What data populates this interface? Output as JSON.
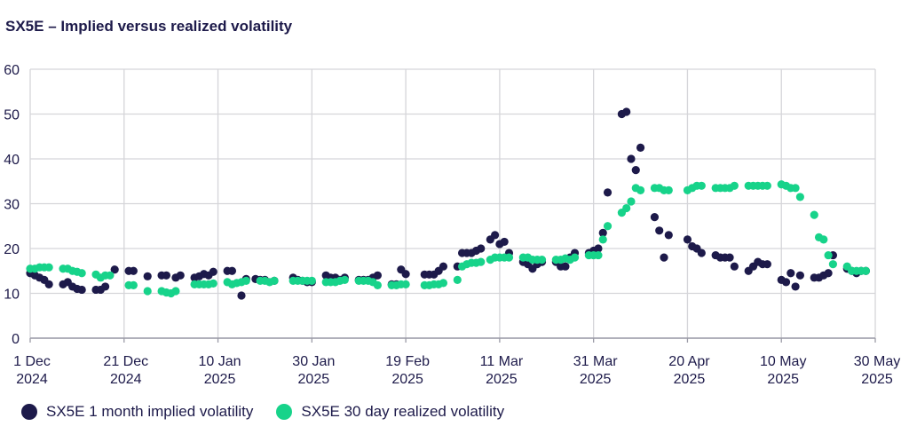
{
  "chart_data": {
    "type": "scatter",
    "title": "SX5E – Implied versus realized volatility",
    "xlabel": "",
    "ylabel": "",
    "ylim": [
      0,
      60
    ],
    "yticks": [
      0,
      10,
      20,
      30,
      40,
      50,
      60
    ],
    "grid": true,
    "legend_position": "bottom-left",
    "x_unit": "days since 1 Dec 2024",
    "xlim": [
      0,
      180
    ],
    "xticks": [
      {
        "x": 0,
        "label": [
          "1 Dec",
          "2024"
        ]
      },
      {
        "x": 20,
        "label": [
          "21 Dec",
          "2024"
        ]
      },
      {
        "x": 40,
        "label": [
          "10 Jan",
          "2025"
        ]
      },
      {
        "x": 60,
        "label": [
          "30 Jan",
          "2025"
        ]
      },
      {
        "x": 80,
        "label": [
          "19 Feb",
          "2025"
        ]
      },
      {
        "x": 100,
        "label": [
          "11 Mar",
          "2025"
        ]
      },
      {
        "x": 120,
        "label": [
          "31 Mar",
          "2025"
        ]
      },
      {
        "x": 140,
        "label": [
          "20 Apr",
          "2025"
        ]
      },
      {
        "x": 160,
        "label": [
          "10 May",
          "2025"
        ]
      },
      {
        "x": 180,
        "label": [
          "30 May",
          "2025"
        ]
      }
    ],
    "series": [
      {
        "name": "SX5E 1 month implied volatility",
        "color": "#1d1a4a",
        "points": [
          [
            0,
            14.5
          ],
          [
            1,
            14
          ],
          [
            2,
            13.5
          ],
          [
            3,
            13
          ],
          [
            4,
            12
          ],
          [
            7,
            12
          ],
          [
            8,
            12.5
          ],
          [
            9,
            11.5
          ],
          [
            10,
            11
          ],
          [
            11,
            10.8
          ],
          [
            14,
            10.8
          ],
          [
            15,
            10.8
          ],
          [
            16,
            11.5
          ],
          [
            18,
            15.3
          ],
          [
            21,
            15
          ],
          [
            22,
            15
          ],
          [
            25,
            13.8
          ],
          [
            28,
            14
          ],
          [
            29,
            14
          ],
          [
            31,
            13.5
          ],
          [
            32,
            14
          ],
          [
            35,
            13.5
          ],
          [
            36,
            13.8
          ],
          [
            37,
            14.3
          ],
          [
            38,
            14
          ],
          [
            39,
            14.8
          ],
          [
            42,
            15
          ],
          [
            43,
            15
          ],
          [
            45,
            9.5
          ],
          [
            46,
            13.2
          ],
          [
            48,
            13.2
          ],
          [
            49,
            13
          ],
          [
            50,
            13
          ],
          [
            52,
            12.8
          ],
          [
            56,
            13.5
          ],
          [
            57,
            13
          ],
          [
            58,
            12.8
          ],
          [
            59,
            12.5
          ],
          [
            60,
            12.5
          ],
          [
            63,
            14
          ],
          [
            64,
            13.5
          ],
          [
            65,
            13.5
          ],
          [
            66,
            13
          ],
          [
            67,
            13.5
          ],
          [
            70,
            13
          ],
          [
            71,
            13
          ],
          [
            72,
            13
          ],
          [
            73,
            13.5
          ],
          [
            74,
            14
          ],
          [
            77,
            12
          ],
          [
            78,
            12
          ],
          [
            79,
            15.3
          ],
          [
            80,
            14.3
          ],
          [
            84,
            14.2
          ],
          [
            85,
            14.2
          ],
          [
            86,
            14.2
          ],
          [
            87,
            15
          ],
          [
            88,
            16
          ],
          [
            91,
            16
          ],
          [
            92,
            19
          ],
          [
            93,
            19
          ],
          [
            94,
            19
          ],
          [
            95,
            19.5
          ],
          [
            96,
            20
          ],
          [
            98,
            22
          ],
          [
            99,
            23
          ],
          [
            100,
            21
          ],
          [
            101,
            21.5
          ],
          [
            102,
            19
          ],
          [
            105,
            17
          ],
          [
            106,
            16.5
          ],
          [
            107,
            15.5
          ],
          [
            108,
            16.5
          ],
          [
            109,
            17
          ],
          [
            112,
            17
          ],
          [
            113,
            16
          ],
          [
            114,
            16
          ],
          [
            115,
            18
          ],
          [
            116,
            19
          ],
          [
            119,
            19
          ],
          [
            120,
            19.5
          ],
          [
            121,
            20
          ],
          [
            122,
            23.5
          ],
          [
            123,
            32.5
          ],
          [
            126,
            50
          ],
          [
            127,
            50.5
          ],
          [
            128,
            40
          ],
          [
            129,
            37.5
          ],
          [
            130,
            42.5
          ],
          [
            133,
            27
          ],
          [
            134,
            24
          ],
          [
            135,
            18
          ],
          [
            136,
            23
          ],
          [
            140,
            22
          ],
          [
            141,
            20.5
          ],
          [
            142,
            20
          ],
          [
            143,
            19
          ],
          [
            146,
            18.5
          ],
          [
            147,
            18
          ],
          [
            148,
            18
          ],
          [
            149,
            18
          ],
          [
            150,
            16
          ],
          [
            153,
            15
          ],
          [
            154,
            16
          ],
          [
            155,
            17
          ],
          [
            156,
            16.5
          ],
          [
            157,
            16.5
          ],
          [
            160,
            13
          ],
          [
            161,
            12.5
          ],
          [
            162,
            14.5
          ],
          [
            163,
            11.5
          ],
          [
            164,
            14
          ],
          [
            167,
            13.5
          ],
          [
            168,
            13.5
          ],
          [
            169,
            14
          ],
          [
            170,
            14.5
          ],
          [
            171,
            18.5
          ],
          [
            174,
            15.5
          ],
          [
            175,
            15
          ],
          [
            176,
            14.5
          ],
          [
            177,
            15
          ],
          [
            178,
            15
          ]
        ]
      },
      {
        "name": "SX5E 30 day realized volatility",
        "color": "#17d38a",
        "points": [
          [
            0,
            15.5
          ],
          [
            1,
            15.5
          ],
          [
            2,
            15.8
          ],
          [
            3,
            15.8
          ],
          [
            4,
            15.8
          ],
          [
            7,
            15.5
          ],
          [
            8,
            15.5
          ],
          [
            9,
            15
          ],
          [
            10,
            14.8
          ],
          [
            11,
            14.5
          ],
          [
            14,
            14.2
          ],
          [
            15,
            13.5
          ],
          [
            16,
            14
          ],
          [
            17,
            14
          ],
          [
            21,
            11.8
          ],
          [
            22,
            11.8
          ],
          [
            25,
            10.5
          ],
          [
            28,
            10.5
          ],
          [
            29,
            10.2
          ],
          [
            30,
            10
          ],
          [
            31,
            10.5
          ],
          [
            35,
            12
          ],
          [
            36,
            12
          ],
          [
            37,
            12
          ],
          [
            38,
            12
          ],
          [
            39,
            12.2
          ],
          [
            42,
            12.5
          ],
          [
            43,
            12
          ],
          [
            44,
            12.3
          ],
          [
            45,
            12.5
          ],
          [
            46,
            12.8
          ],
          [
            49,
            12.8
          ],
          [
            50,
            12.8
          ],
          [
            51,
            12.5
          ],
          [
            52,
            12.8
          ],
          [
            56,
            12.8
          ],
          [
            57,
            12.8
          ],
          [
            58,
            12.8
          ],
          [
            59,
            12.8
          ],
          [
            60,
            12.8
          ],
          [
            63,
            12.5
          ],
          [
            64,
            12.5
          ],
          [
            65,
            12.5
          ],
          [
            66,
            12.8
          ],
          [
            67,
            13
          ],
          [
            70,
            12.8
          ],
          [
            71,
            12.8
          ],
          [
            72,
            12.8
          ],
          [
            73,
            12.5
          ],
          [
            74,
            11.8
          ],
          [
            77,
            11.8
          ],
          [
            78,
            11.8
          ],
          [
            79,
            12
          ],
          [
            80,
            12
          ],
          [
            84,
            11.8
          ],
          [
            85,
            11.8
          ],
          [
            86,
            12
          ],
          [
            87,
            12
          ],
          [
            88,
            12.3
          ],
          [
            91,
            13
          ],
          [
            92,
            16
          ],
          [
            93,
            16.5
          ],
          [
            94,
            16.8
          ],
          [
            95,
            16.8
          ],
          [
            96,
            17
          ],
          [
            98,
            17.5
          ],
          [
            99,
            18
          ],
          [
            100,
            18
          ],
          [
            101,
            18
          ],
          [
            102,
            18
          ],
          [
            105,
            18
          ],
          [
            106,
            18
          ],
          [
            107,
            17.5
          ],
          [
            108,
            17.5
          ],
          [
            109,
            17.5
          ],
          [
            112,
            17.5
          ],
          [
            113,
            17.5
          ],
          [
            114,
            17.8
          ],
          [
            115,
            17.5
          ],
          [
            116,
            18
          ],
          [
            119,
            18.5
          ],
          [
            120,
            18.5
          ],
          [
            121,
            18.5
          ],
          [
            122,
            22
          ],
          [
            123,
            25
          ],
          [
            126,
            28
          ],
          [
            127,
            29
          ],
          [
            128,
            30.5
          ],
          [
            129,
            33.5
          ],
          [
            130,
            33
          ],
          [
            133,
            33.5
          ],
          [
            134,
            33.5
          ],
          [
            135,
            33
          ],
          [
            136,
            33
          ],
          [
            140,
            33
          ],
          [
            141,
            33.5
          ],
          [
            142,
            34
          ],
          [
            143,
            34
          ],
          [
            146,
            33.5
          ],
          [
            147,
            33.5
          ],
          [
            148,
            33.5
          ],
          [
            149,
            33.5
          ],
          [
            150,
            34
          ],
          [
            153,
            34
          ],
          [
            154,
            34
          ],
          [
            155,
            34
          ],
          [
            156,
            34
          ],
          [
            157,
            34
          ],
          [
            160,
            34.3
          ],
          [
            161,
            34
          ],
          [
            162,
            33.5
          ],
          [
            163,
            33.5
          ],
          [
            164,
            31.5
          ],
          [
            167,
            27.5
          ],
          [
            168,
            22.5
          ],
          [
            169,
            22
          ],
          [
            170,
            18.5
          ],
          [
            171,
            16.5
          ],
          [
            174,
            16
          ],
          [
            175,
            15
          ],
          [
            176,
            15
          ],
          [
            177,
            15
          ],
          [
            178,
            15
          ]
        ]
      }
    ]
  }
}
